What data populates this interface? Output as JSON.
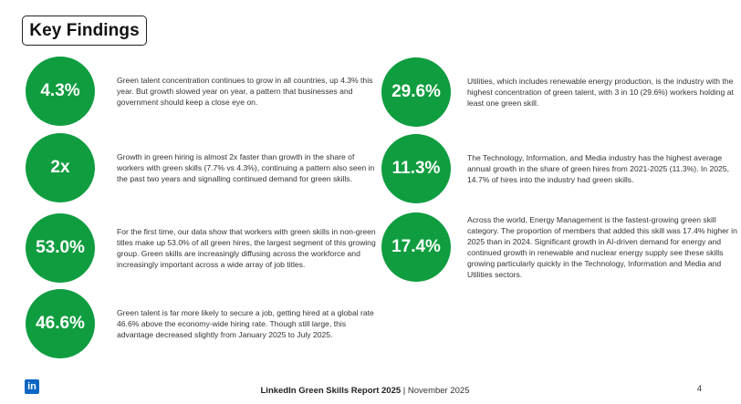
{
  "title": "Key Findings",
  "colors": {
    "accent_green": "#0f9d3f",
    "linkedin_blue": "#0a66c2"
  },
  "findings": [
    {
      "stat": "4.3%",
      "text": "Green talent concentration continues to grow in all countries, up 4.3% this year. But growth slowed year on year, a pattern that businesses and government should keep a close eye on."
    },
    {
      "stat": "2x",
      "text": "Growth in green hiring is almost 2x faster than growth in the share of workers with green skills (7.7% vs 4.3%), continuing a pattern also seen in the past two years and signalling continued demand for green skills."
    },
    {
      "stat": "53.0%",
      "text": "For the first time, our data show that workers with green skills in non-green titles make up 53.0% of all green hires, the largest segment of this growing group. Green skills are increasingly diffusing across the workforce and increasingly important across a wide array of job titles."
    },
    {
      "stat": "46.6%",
      "text": "Green talent is far more likely to secure a job, getting hired at a global rate 46.6% above the economy-wide hiring rate. Though still large, this advantage decreased slightly from January 2025 to July 2025."
    },
    {
      "stat": "29.6%",
      "text": "Utilities, which includes renewable energy production, is the industry with the highest concentration of green talent, with 3 in 10 (29.6%) workers holding at least one green skill."
    },
    {
      "stat": "11.3%",
      "text": "The Technology, Information, and Media industry has the highest average annual growth in the share of green hires from 2021-2025 (11.3%). In 2025, 14.7% of hires into the industry had green skills."
    },
    {
      "stat": "17.4%",
      "text": "Across the world, Energy Management is the fastest-growing green skill category. The proportion of members that added this skill was 17.4% higher in 2025 than in 2024. Significant growth in AI-driven demand for energy and continued growth in renewable and nuclear energy supply see these skills growing particularly quickly in the Technology, Information and Media and Utilities sectors."
    }
  ],
  "footer": {
    "logo_text": "in",
    "report": "LinkedIn Green Skills Report 2025",
    "separator": " | ",
    "date": "November 2025",
    "page_number": "4"
  }
}
